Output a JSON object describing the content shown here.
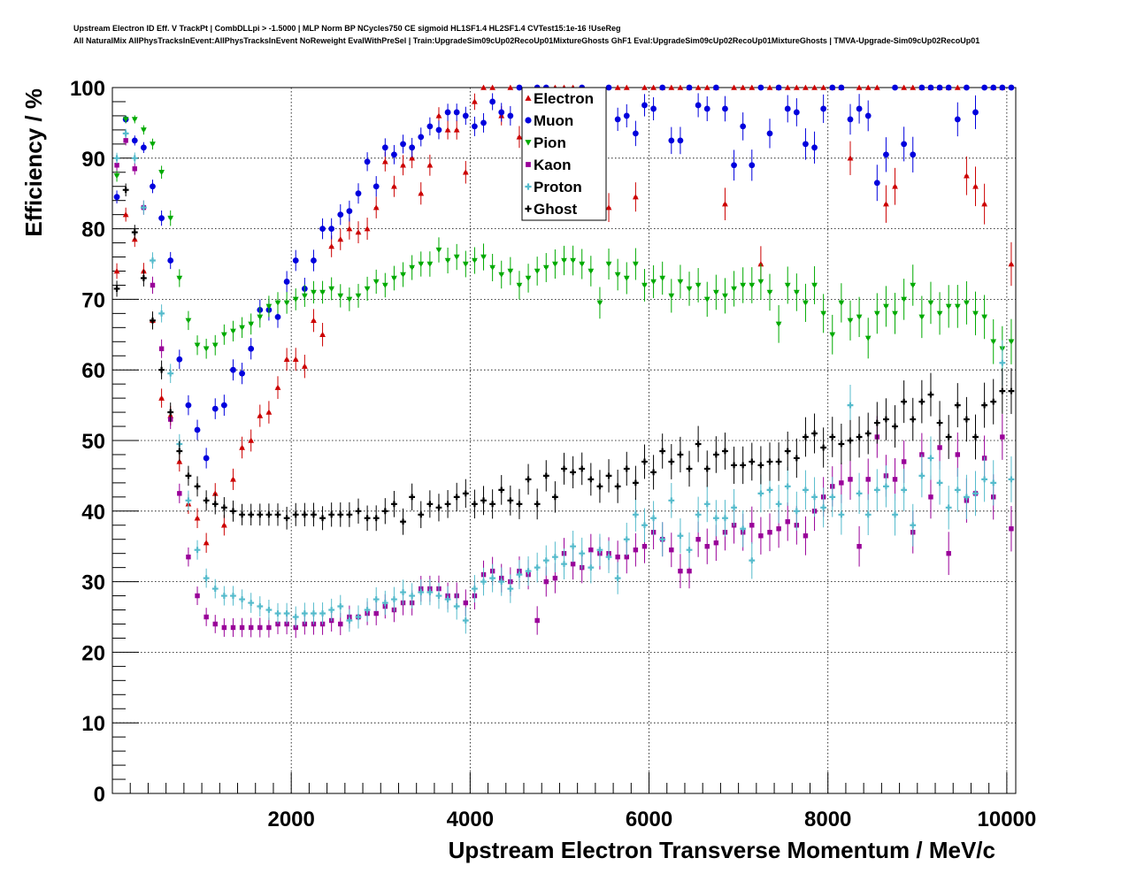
{
  "title_line1": "Upstream Electron ID Eff. V TrackPt | CombDLLpi > -1.5000 | MLP Norm BP NCycles750 CE sigmoid HL1SF1.4 HL2SF1.4 CVTest15:1e-16 !UseReg",
  "title_line2": "All NaturalMix AllPhysTracksInEvent:AllPhysTracksInEvent NoReweight EvalWithPreSel | Train:UpgradeSim09cUp02RecoUp01MixtureGhosts GhF1 Eval:UpgradeSim09cUp02RecoUp01MixtureGhosts | TMVA-Upgrade-Sim09cUp02RecoUp01",
  "chart_data": {
    "type": "scatter",
    "xlabel": "Upstream Electron Transverse Momentum / MeV/c",
    "ylabel": "Efficiency / %",
    "xlim": [
      0,
      10100
    ],
    "ylim": [
      0,
      100
    ],
    "x_ticks": [
      2000,
      4000,
      6000,
      8000,
      10000
    ],
    "y_ticks": [
      0,
      10,
      20,
      30,
      40,
      50,
      60,
      70,
      80,
      90,
      100
    ],
    "grid": true,
    "legend_position": "top-center",
    "x": [
      50,
      150,
      250,
      350,
      450,
      550,
      650,
      750,
      850,
      950,
      1050,
      1150,
      1250,
      1350,
      1450,
      1550,
      1650,
      1750,
      1850,
      1950,
      2050,
      2150,
      2250,
      2350,
      2450,
      2550,
      2650,
      2750,
      2850,
      2950,
      3050,
      3150,
      3250,
      3350,
      3450,
      3550,
      3650,
      3750,
      3850,
      3950,
      4050,
      4150,
      4250,
      4350,
      4450,
      4550,
      4650,
      4750,
      4850,
      4950,
      5050,
      5150,
      5250,
      5350,
      5450,
      5550,
      5650,
      5750,
      5850,
      5950,
      6050,
      6150,
      6250,
      6350,
      6450,
      6550,
      6650,
      6750,
      6850,
      6950,
      7050,
      7150,
      7250,
      7350,
      7450,
      7550,
      7650,
      7750,
      7850,
      7950,
      8050,
      8150,
      8250,
      8350,
      8450,
      8550,
      8650,
      8750,
      8850,
      8950,
      9050,
      9150,
      9250,
      9350,
      9450,
      9550,
      9650,
      9750,
      9850,
      9950,
      10050
    ],
    "series": [
      {
        "name": "Electron",
        "color": "#cc0000",
        "marker": "triangle-up",
        "values": [
          74.0,
          82.0,
          78.5,
          74.0,
          67.0,
          56.0,
          53.5,
          47.0,
          41.0,
          39.0,
          35.5,
          42.5,
          38.0,
          44.5,
          49.0,
          50.0,
          53.5,
          54.0,
          57.5,
          61.5,
          61.5,
          60.5,
          67.0,
          65.0,
          77.5,
          78.5,
          80.0,
          79.5,
          80.0,
          83.0,
          89.5,
          86.0,
          89.0,
          90.0,
          85.0,
          89.0,
          96.0,
          94.0,
          94.0,
          88.0,
          98.0,
          100,
          100,
          96.0,
          100,
          93.0,
          95.0,
          100,
          100,
          100,
          100,
          100,
          98.0,
          86.0,
          97.0,
          83.0,
          100,
          100,
          84.5,
          100,
          100,
          100,
          100,
          100,
          100,
          100,
          100,
          100,
          83.5,
          100,
          100,
          100,
          75.0,
          100,
          100,
          100,
          100,
          100,
          100,
          100,
          100,
          100,
          90.0,
          100,
          100,
          100,
          83.5,
          86.0,
          100,
          100,
          100,
          100,
          100,
          100,
          100,
          87.5,
          86.0,
          83.5,
          100,
          100,
          75.0
        ]
      },
      {
        "name": "Muon",
        "color": "#0000dd",
        "marker": "circle",
        "values": [
          84.5,
          95.5,
          92.5,
          91.5,
          86.0,
          81.5,
          75.5,
          61.5,
          55.0,
          51.5,
          47.5,
          54.5,
          55.0,
          60.0,
          59.5,
          63.0,
          68.5,
          68.5,
          67.5,
          72.5,
          75.5,
          71.5,
          75.5,
          80.0,
          80.0,
          82.0,
          82.5,
          85.0,
          89.5,
          86.0,
          91.5,
          90.5,
          92.0,
          91.5,
          93.0,
          94.5,
          94.0,
          96.5,
          96.5,
          96.0,
          94.5,
          95.0,
          98.0,
          96.5,
          96.0,
          100,
          97.0,
          100,
          100,
          97.0,
          96.5,
          97.5,
          100,
          96.0,
          97.0,
          100,
          95.5,
          96.0,
          93.5,
          97.5,
          97.0,
          100,
          92.5,
          92.5,
          100,
          97.5,
          97.0,
          100,
          97.0,
          89.0,
          94.5,
          89.0,
          100,
          93.5,
          100,
          97.0,
          96.5,
          92.0,
          91.5,
          97.0,
          100,
          100,
          95.5,
          97.0,
          96.0,
          86.5,
          90.5,
          100,
          92.0,
          90.5,
          100,
          100,
          100,
          100,
          95.5,
          100,
          96.5,
          100,
          100,
          100,
          100
        ]
      },
      {
        "name": "Pion",
        "color": "#00aa00",
        "marker": "triangle-down",
        "values": [
          87.5,
          95.5,
          95.5,
          94.0,
          92.0,
          88.0,
          81.5,
          73.0,
          67.0,
          63.5,
          63.0,
          63.5,
          65.0,
          65.5,
          66.0,
          66.5,
          67.5,
          69.0,
          69.5,
          69.5,
          70.0,
          70.5,
          71.0,
          71.0,
          71.5,
          70.5,
          70.0,
          70.5,
          71.5,
          72.5,
          72.0,
          73.0,
          73.5,
          74.5,
          75.0,
          75.0,
          77.0,
          75.5,
          76.0,
          75.0,
          75.5,
          76.0,
          74.5,
          73.5,
          74.0,
          72.0,
          73.0,
          74.0,
          74.5,
          75.0,
          75.5,
          75.5,
          75.0,
          74.0,
          69.5,
          75.0,
          73.5,
          73.0,
          75.0,
          72.0,
          72.5,
          73.0,
          70.5,
          72.5,
          71.5,
          72.0,
          70.0,
          71.0,
          70.5,
          71.5,
          72.0,
          72.0,
          72.5,
          71.0,
          66.5,
          72.0,
          71.0,
          69.5,
          72.0,
          68.0,
          65.0,
          69.5,
          67.0,
          67.5,
          64.5,
          68.0,
          69.0,
          68.0,
          70.0,
          72.0,
          67.5,
          69.5,
          68.0,
          69.0,
          69.0,
          69.5,
          68.0,
          67.5,
          64.0,
          63.0,
          64.0
        ]
      },
      {
        "name": "Kaon",
        "color": "#990099",
        "marker": "square",
        "values": [
          89.0,
          92.5,
          88.5,
          83.0,
          72.0,
          63.0,
          53.0,
          42.5,
          33.5,
          28.0,
          25.0,
          24.0,
          23.5,
          23.5,
          23.5,
          23.5,
          23.5,
          23.5,
          24.0,
          24.0,
          23.5,
          24.0,
          24.0,
          24.0,
          24.5,
          24.0,
          25.0,
          25.0,
          25.5,
          25.5,
          26.5,
          26.0,
          27.0,
          27.0,
          29.0,
          29.0,
          29.0,
          28.0,
          28.0,
          27.0,
          28.0,
          31.0,
          31.5,
          30.5,
          30.0,
          31.5,
          31.0,
          24.5,
          30.0,
          30.5,
          34.0,
          32.5,
          32.0,
          34.5,
          34.0,
          34.0,
          33.5,
          33.5,
          34.5,
          35.0,
          37.0,
          36.0,
          34.5,
          31.5,
          31.5,
          36.0,
          35.0,
          35.5,
          37.0,
          38.0,
          37.0,
          38.0,
          36.5,
          37.0,
          37.5,
          38.5,
          38.0,
          36.5,
          40.0,
          42.0,
          43.5,
          44.0,
          44.5,
          35.0,
          44.5,
          50.5,
          45.0,
          44.5,
          47.0,
          37.0,
          48.0,
          42.0,
          49.0,
          34.0,
          48.0,
          41.5,
          42.5,
          47.5,
          42.0,
          50.5,
          37.5
        ]
      },
      {
        "name": "Proton",
        "color": "#55bbcc",
        "marker": "cross",
        "values": [
          90.0,
          93.5,
          90.0,
          83.0,
          75.5,
          68.0,
          59.5,
          49.5,
          41.5,
          34.5,
          30.5,
          29.0,
          28.0,
          28.0,
          27.5,
          27.0,
          26.5,
          26.0,
          25.5,
          25.5,
          25.0,
          25.5,
          25.5,
          25.5,
          26.0,
          26.5,
          24.5,
          25.0,
          26.0,
          27.5,
          27.0,
          27.5,
          28.5,
          28.0,
          28.5,
          28.5,
          28.0,
          27.5,
          26.5,
          24.5,
          29.0,
          30.0,
          30.5,
          30.0,
          29.0,
          31.0,
          31.5,
          32.0,
          33.0,
          33.5,
          32.5,
          35.0,
          34.0,
          32.0,
          34.5,
          33.5,
          30.5,
          36.0,
          39.5,
          38.0,
          39.0,
          36.0,
          41.5,
          36.5,
          34.5,
          39.5,
          41.0,
          39.0,
          39.0,
          40.5,
          37.5,
          33.0,
          42.5,
          43.0,
          41.0,
          43.5,
          40.0,
          43.0,
          42.0,
          40.5,
          42.0,
          39.5,
          55.0,
          42.5,
          39.5,
          43.0,
          43.5,
          39.5,
          43.0,
          38.0,
          45.0,
          47.5,
          44.0,
          40.5,
          43.0,
          42.0,
          42.5,
          44.5,
          44.0,
          61.0,
          44.5
        ]
      },
      {
        "name": "Ghost",
        "color": "#000000",
        "marker": "cross",
        "values": [
          71.5,
          85.5,
          79.5,
          73.0,
          67.0,
          60.0,
          54.0,
          48.5,
          45.0,
          43.5,
          41.5,
          41.0,
          40.5,
          40.0,
          39.5,
          39.5,
          39.5,
          39.5,
          39.5,
          39.0,
          39.5,
          39.5,
          39.5,
          39.0,
          39.5,
          39.5,
          39.5,
          40.0,
          39.0,
          39.0,
          40.0,
          41.0,
          38.5,
          42.0,
          39.5,
          41.0,
          40.5,
          41.0,
          42.0,
          42.5,
          41.0,
          41.5,
          41.0,
          43.0,
          41.5,
          41.0,
          44.5,
          41.0,
          45.0,
          42.0,
          46.0,
          45.5,
          46.0,
          44.5,
          43.5,
          45.0,
          43.5,
          46.0,
          44.0,
          47.0,
          45.5,
          48.5,
          47.0,
          48.0,
          46.0,
          49.5,
          46.0,
          48.0,
          48.5,
          46.5,
          46.5,
          47.0,
          46.5,
          47.0,
          47.0,
          48.5,
          47.5,
          50.5,
          51.0,
          49.0,
          50.5,
          49.5,
          50.0,
          50.5,
          51.0,
          52.5,
          53.0,
          52.0,
          55.5,
          53.0,
          55.5,
          56.5,
          52.5,
          50.5,
          55.0,
          53.0,
          50.5,
          55.0,
          55.5,
          57.0,
          57.0
        ]
      }
    ]
  }
}
